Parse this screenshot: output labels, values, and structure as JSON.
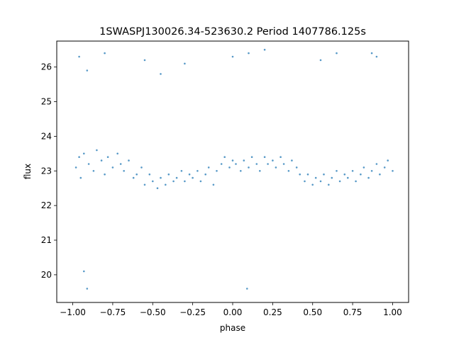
{
  "chart_data": {
    "type": "scatter",
    "title": "1SWASPJ130026.34-523630.2 Period 1407786.125s",
    "xlabel": "phase",
    "ylabel": "flux",
    "xlim": [
      -1.1,
      1.1
    ],
    "ylim": [
      19.2,
      26.75
    ],
    "xticks": [
      -1.0,
      -0.75,
      -0.5,
      -0.25,
      0.0,
      0.25,
      0.5,
      0.75,
      1.0
    ],
    "xtick_labels": [
      "−1.00",
      "−0.75",
      "−0.50",
      "−0.25",
      "0.00",
      "0.25",
      "0.50",
      "0.75",
      "1.00"
    ],
    "yticks": [
      20,
      21,
      22,
      23,
      24,
      25,
      26
    ],
    "ytick_labels": [
      "20",
      "21",
      "22",
      "23",
      "24",
      "25",
      "26"
    ],
    "grid": false,
    "marker_color": "#1f77b4",
    "series": [
      {
        "x": [
          -0.98,
          -0.96,
          -0.95,
          -0.93,
          -0.9,
          -0.87,
          -0.85,
          -0.82,
          -0.8,
          -0.78,
          -0.75,
          -0.72,
          -0.7,
          -0.68,
          -0.65,
          -0.62,
          -0.6,
          -0.57,
          -0.55,
          -0.52,
          -0.5,
          -0.47,
          -0.45,
          -0.42,
          -0.4,
          -0.37,
          -0.35,
          -0.32,
          -0.3,
          -0.27,
          -0.25,
          -0.22,
          -0.2,
          -0.17,
          -0.15,
          -0.12,
          -0.1,
          -0.07,
          -0.05,
          -0.02,
          0.0,
          0.02,
          0.05,
          0.07,
          0.1,
          0.12,
          0.15,
          0.17,
          0.2,
          0.22,
          0.25,
          0.27,
          0.3,
          0.32,
          0.35,
          0.37,
          0.4,
          0.42,
          0.45,
          0.47,
          0.5,
          0.52,
          0.55,
          0.57,
          0.6,
          0.62,
          0.65,
          0.67,
          0.7,
          0.72,
          0.75,
          0.77,
          0.8,
          0.82,
          0.85,
          0.87,
          0.9,
          0.92,
          0.95,
          0.97,
          1.0,
          -0.96,
          -0.91,
          -0.8,
          -0.55,
          -0.45,
          -0.3,
          0.0,
          0.1,
          0.2,
          0.55,
          0.65,
          0.87,
          0.9,
          -0.93,
          -0.91,
          0.09
        ],
        "y": [
          23.1,
          23.4,
          22.8,
          23.5,
          23.2,
          23.0,
          23.6,
          23.3,
          22.9,
          23.4,
          23.1,
          23.5,
          23.2,
          23.0,
          23.3,
          22.8,
          22.9,
          23.1,
          22.6,
          22.9,
          22.7,
          22.5,
          22.8,
          22.6,
          22.9,
          22.7,
          22.8,
          23.0,
          22.7,
          22.9,
          22.8,
          23.0,
          22.7,
          22.9,
          23.1,
          22.6,
          23.0,
          23.2,
          23.4,
          23.1,
          23.3,
          23.2,
          23.0,
          23.3,
          23.1,
          23.4,
          23.2,
          23.0,
          23.4,
          23.2,
          23.3,
          23.1,
          23.4,
          23.2,
          23.0,
          23.3,
          23.1,
          22.9,
          22.7,
          22.9,
          22.6,
          22.8,
          22.7,
          22.9,
          22.6,
          22.8,
          23.0,
          22.7,
          22.9,
          22.8,
          23.0,
          22.7,
          22.9,
          23.1,
          22.8,
          23.0,
          23.2,
          22.9,
          23.1,
          23.3,
          23.0,
          26.3,
          25.9,
          26.4,
          26.2,
          25.8,
          26.1,
          26.3,
          26.4,
          26.5,
          26.2,
          26.4,
          26.4,
          26.3,
          20.1,
          19.6,
          19.6
        ]
      }
    ]
  }
}
